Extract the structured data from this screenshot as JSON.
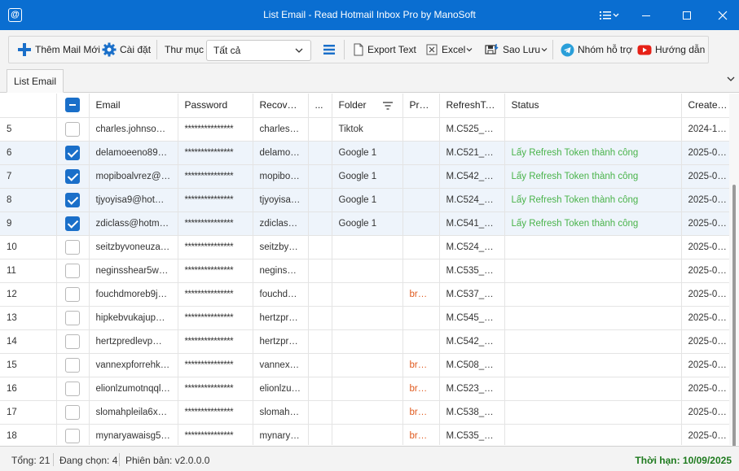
{
  "window": {
    "title": "List Email - Read Hotmail Inbox Pro by ManoSoft",
    "app_icon_glyph": "@"
  },
  "toolbar": {
    "add_mail_label": "Thêm Mail Mới",
    "settings_label": "Cài đặt",
    "folder_label": "Thư mục",
    "folder_selected": "Tất cả",
    "export_text_label": "Export Text",
    "excel_label": "Excel",
    "backup_label": "Sao Lưu",
    "support_group_label": "Nhóm hỗ trợ",
    "guide_label": "Hướng dẫn"
  },
  "tabs": [
    "List Email"
  ],
  "grid": {
    "columns": [
      "",
      "",
      "Email",
      "Password",
      "Recover...",
      "...",
      "Folder",
      "Proxy",
      "RefreshTok...",
      "Status",
      "Created..."
    ],
    "rows": [
      {
        "no": "5",
        "checked": false,
        "email": "charles.johnson90...",
        "password": "***************",
        "recover": "charles.jo...",
        "extra": "",
        "folder": "Tiktok",
        "proxy": "",
        "token": "M.C525_BL...",
        "status": "",
        "created": "2024-12-..."
      },
      {
        "no": "6",
        "checked": true,
        "email": "delamoeeno89@...",
        "password": "***************",
        "recover": "delamoe...",
        "extra": "",
        "folder": "Google 1",
        "proxy": "",
        "token": "M.C521_S...",
        "status": "Lấy Refresh Token thành công",
        "created": "2025-01-..."
      },
      {
        "no": "7",
        "checked": true,
        "email": "mopiboalvrez@ho...",
        "password": "***************",
        "recover": "mopiboal...",
        "extra": "",
        "folder": "Google 1",
        "proxy": "",
        "token": "M.C542_S...",
        "status": "Lấy Refresh Token thành công",
        "created": "2025-01-..."
      },
      {
        "no": "8",
        "checked": true,
        "email": "tjyoyisa9@hotmail...",
        "password": "***************",
        "recover": "tjyoyisa9...",
        "extra": "",
        "folder": "Google 1",
        "proxy": "",
        "token": "M.C524_BL...",
        "status": "Lấy Refresh Token thành công",
        "created": "2025-01-..."
      },
      {
        "no": "9",
        "checked": true,
        "email": "zdiclass@hotmail...",
        "password": "***************",
        "recover": "zdiclassm...",
        "extra": "",
        "folder": "Google 1",
        "proxy": "",
        "token": "M.C541_BA...",
        "status": "Lấy Refresh Token thành công",
        "created": "2025-01-..."
      },
      {
        "no": "10",
        "checked": false,
        "email": "seitzbyvoneuzaen...",
        "password": "***************",
        "recover": "seitzbyvo...",
        "extra": "",
        "folder": "",
        "proxy": "",
        "token": "M.C524_S...",
        "status": "",
        "created": "2025-08-..."
      },
      {
        "no": "11",
        "checked": false,
        "email": "neginsshear5wxp...",
        "password": "***************",
        "recover": "neginssh...",
        "extra": "",
        "folder": "",
        "proxy": "",
        "token": "M.C535_BA...",
        "status": "",
        "created": "2025-07-..."
      },
      {
        "no": "12",
        "checked": false,
        "email": "fouchdmoreb9j7ot...",
        "password": "***************",
        "recover": "fouchdm...",
        "extra": "",
        "folder": "",
        "proxy": "brd....",
        "token": "M.C537_BA...",
        "status": "",
        "created": "2025-05-..."
      },
      {
        "no": "13",
        "checked": false,
        "email": "hipkebvukajup@...",
        "password": "***************",
        "recover": "hertzpred...",
        "extra": "",
        "folder": "",
        "proxy": "",
        "token": "M.C545_S...",
        "status": "",
        "created": "2025-03-..."
      },
      {
        "no": "14",
        "checked": false,
        "email": "hertzpredlevp@h...",
        "password": "***************",
        "recover": "hertzpred...",
        "extra": "",
        "folder": "",
        "proxy": "",
        "token": "M.C542_S...",
        "status": "",
        "created": "2025-03-..."
      },
      {
        "no": "15",
        "checked": false,
        "email": "vannexpforrehk@...",
        "password": "***************",
        "recover": "vannexpf...",
        "extra": "",
        "folder": "",
        "proxy": "brd....",
        "token": "M.C508_BA...",
        "status": "",
        "created": "2025-03-..."
      },
      {
        "no": "16",
        "checked": false,
        "email": "elionlzumotnqql@...",
        "password": "***************",
        "recover": "elionlzum...",
        "extra": "",
        "folder": "",
        "proxy": "brd....",
        "token": "M.C523_BA...",
        "status": "",
        "created": "2025-03-..."
      },
      {
        "no": "17",
        "checked": false,
        "email": "slomahpleila6xo@...",
        "password": "***************",
        "recover": "slomahpl...",
        "extra": "",
        "folder": "",
        "proxy": "brd....",
        "token": "M.C538_S...",
        "status": "",
        "created": "2025-03-..."
      },
      {
        "no": "18",
        "checked": false,
        "email": "mynaryawaisg5kt...",
        "password": "***************",
        "recover": "mynarya...",
        "extra": "",
        "folder": "",
        "proxy": "brd....",
        "token": "M.C535_S...",
        "status": "",
        "created": "2025-03-..."
      }
    ]
  },
  "statusbar": {
    "total": "Tổng: 21",
    "selected": "Đang chọn: 4",
    "version": "Phiên bản: v2.0.0.0",
    "expire": "Thời hạn: 10/09/2025"
  },
  "colors": {
    "titlebar": "#0a6ed1",
    "status_ok": "#49b34a",
    "proxy": "#e05a1e",
    "expire": "#1e7a1e",
    "checkbox": "#1a6fc9"
  }
}
